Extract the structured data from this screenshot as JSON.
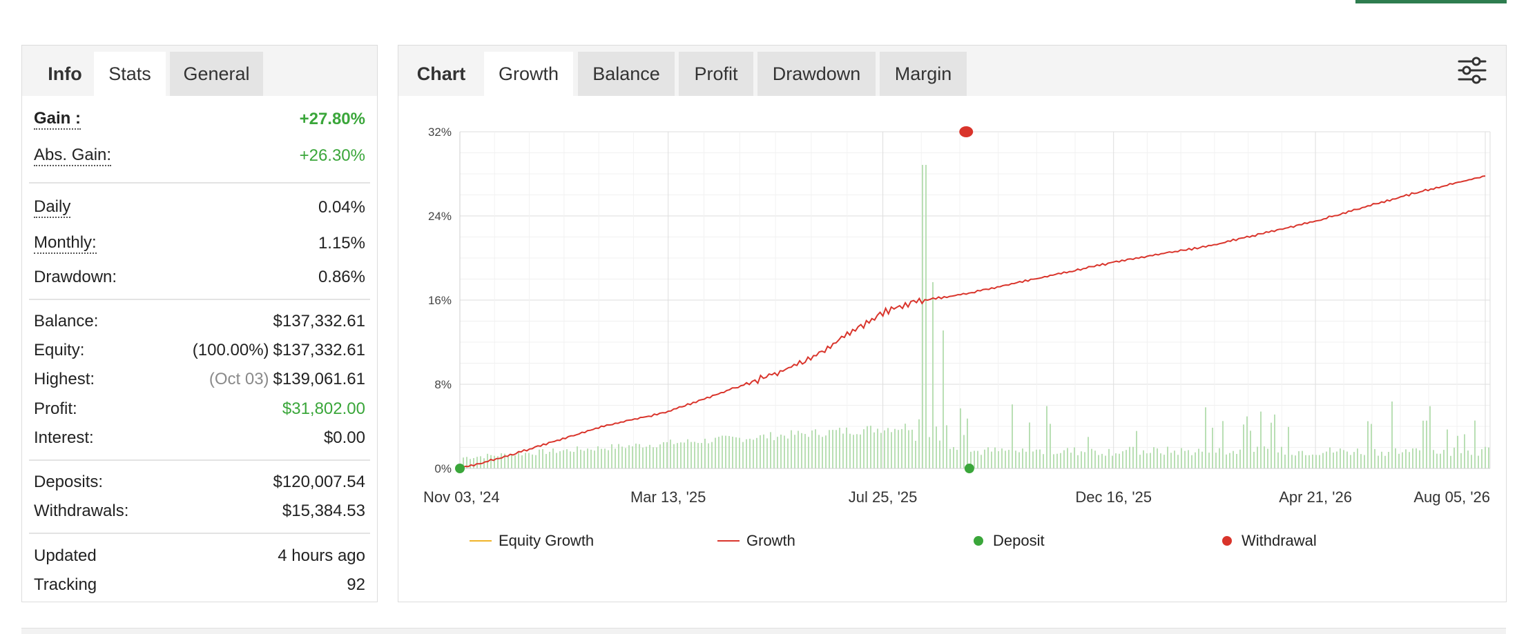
{
  "stats_panel": {
    "tabs": [
      {
        "label": "Info"
      },
      {
        "label": "Stats"
      },
      {
        "label": "General"
      }
    ],
    "gain": {
      "label": "Gain :",
      "value": "+27.80%"
    },
    "abs_gain": {
      "label": "Abs. Gain:",
      "value": "+26.30%"
    },
    "daily": {
      "label": "Daily",
      "value": "0.04%"
    },
    "monthly": {
      "label": "Monthly:",
      "value": "1.15%"
    },
    "drawdown": {
      "label": "Drawdown:",
      "value": "0.86%"
    },
    "balance": {
      "label": "Balance:",
      "value": "$137,332.61"
    },
    "equity": {
      "label": "Equity:",
      "note": "(100.00%)",
      "value": "$137,332.61"
    },
    "highest": {
      "label": "Highest:",
      "note": "(Oct 03)",
      "value": "$139,061.61"
    },
    "profit": {
      "label": "Profit:",
      "value": "$31,802.00"
    },
    "interest": {
      "label": "Interest:",
      "value": "$0.00"
    },
    "deposits": {
      "label": "Deposits:",
      "value": "$120,007.54"
    },
    "withdrawals": {
      "label": "Withdrawals:",
      "value": "$15,384.53"
    },
    "updated": {
      "label": "Updated",
      "value": "4 hours ago"
    },
    "tracking": {
      "label": "Tracking",
      "value": "92"
    }
  },
  "chart_panel": {
    "tabs": [
      {
        "label": "Chart"
      },
      {
        "label": "Growth"
      },
      {
        "label": "Balance"
      },
      {
        "label": "Profit"
      },
      {
        "label": "Drawdown"
      },
      {
        "label": "Margin"
      }
    ],
    "settings_icon": "sliders-icon"
  },
  "colors": {
    "growth_line": "#d9342b",
    "equity_line": "#f0b429",
    "deposit": "#3aa63a",
    "withdrawal": "#d9342b",
    "bars": "#b9dfb4",
    "positive": "#3aa63a"
  },
  "chart_data": {
    "type": "line",
    "x_tick_labels": [
      "Nov 03, '24",
      "Mar 13, '25",
      "Jul 25, '25",
      "Dec 16, '25",
      "Apr 21, '26",
      "Aug 05, '26"
    ],
    "x_range": [
      "2024-11-03",
      "2026-08-08"
    ],
    "y_tick_labels": [
      "0%",
      "8%",
      "16%",
      "24%",
      "32%"
    ],
    "ylim": [
      0,
      32
    ],
    "legend": [
      "Equity Growth",
      "Growth",
      "Deposit",
      "Withdrawal"
    ],
    "legend_position": "bottom",
    "grid": true,
    "series": [
      {
        "name": "Growth",
        "x": [
          "2024-11-03",
          "2024-12-01",
          "2025-01-01",
          "2025-02-01",
          "2025-03-13",
          "2025-04-15",
          "2025-05-15",
          "2025-06-10",
          "2025-07-01",
          "2025-07-25",
          "2025-08-15",
          "2025-09-15",
          "2025-10-15",
          "2025-12-16",
          "2026-02-15",
          "2026-04-21",
          "2026-06-15",
          "2026-08-05"
        ],
        "values": [
          0,
          1.1,
          2.6,
          4.0,
          5.4,
          7.2,
          8.8,
          10.4,
          12.5,
          14.8,
          15.9,
          16.6,
          17.6,
          19.6,
          21.2,
          23.5,
          25.9,
          27.8
        ]
      }
    ],
    "deposits": [
      {
        "x": "2024-11-03",
        "y": 0
      },
      {
        "x": "2025-09-17",
        "y": 0
      }
    ],
    "withdrawals": [
      {
        "x": "2025-09-15",
        "y": 32
      }
    ]
  },
  "legend_labels": {
    "equity_growth": "Equity Growth",
    "growth": "Growth",
    "deposit": "Deposit",
    "withdrawal": "Withdrawal"
  }
}
